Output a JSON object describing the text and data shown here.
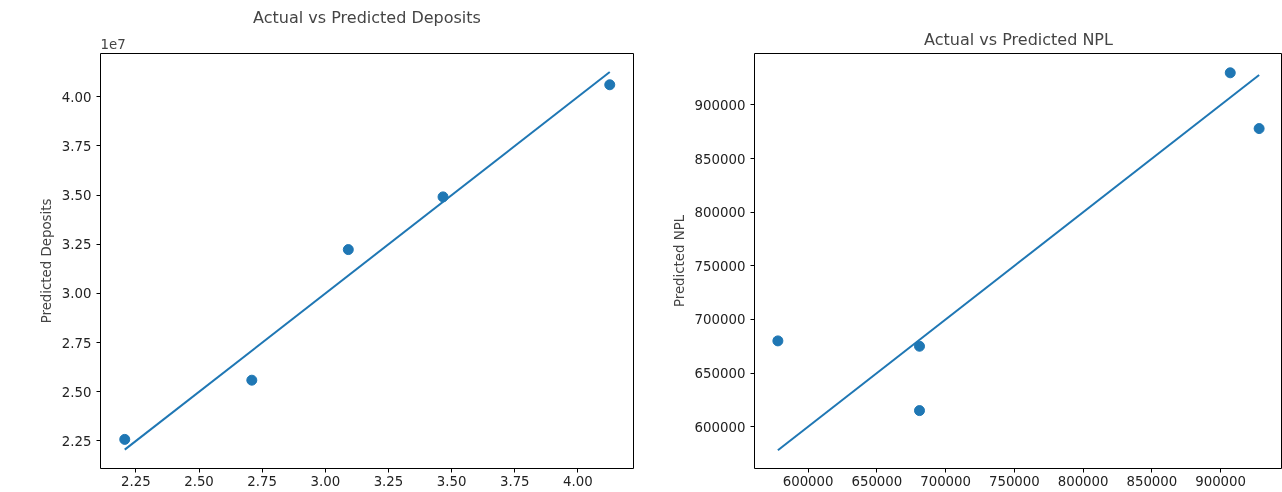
{
  "chart_data": [
    {
      "type": "scatter",
      "title": "Actual vs Predicted Deposits",
      "ylabel": "Predicted Deposits",
      "annotations": [
        "1e7"
      ],
      "x": [
        2.206,
        2.709,
        3.091,
        3.466,
        4.126
      ],
      "grid": false,
      "series": [
        {
          "marker": "circle",
          "color": "#1f77b4",
          "values": [
            2.258,
            2.559,
            3.223,
            3.491,
            4.061
          ]
        },
        {
          "type": "line",
          "color": "#1f77b4",
          "x": [
            2.206,
            4.126
          ],
          "values": [
            2.206,
            4.126
          ]
        }
      ],
      "xlim": [
        2.11,
        4.22
      ],
      "ylim": [
        2.11,
        4.22
      ],
      "xticks": [
        {
          "value": 2.25,
          "label": "2.25"
        },
        {
          "value": 2.5,
          "label": "2.50"
        },
        {
          "value": 2.75,
          "label": "2.75"
        },
        {
          "value": 3,
          "label": "3.00"
        },
        {
          "value": 3.25,
          "label": "3.25"
        },
        {
          "value": 3.5,
          "label": "3.50"
        },
        {
          "value": 3.75,
          "label": "3.75"
        },
        {
          "value": 4,
          "label": "4.00"
        }
      ],
      "yticks": [
        {
          "value": 2.25,
          "label": "2.25"
        },
        {
          "value": 2.5,
          "label": "2.50"
        },
        {
          "value": 2.75,
          "label": "2.75"
        },
        {
          "value": 3,
          "label": "3.00"
        },
        {
          "value": 3.25,
          "label": "3.25"
        },
        {
          "value": 3.5,
          "label": "3.50"
        },
        {
          "value": 3.75,
          "label": "3.75"
        },
        {
          "value": 4,
          "label": "4.00"
        }
      ]
    },
    {
      "type": "scatter",
      "title": "Actual vs Predicted NPL",
      "ylabel": "Predicted NPL",
      "x": [
        578000,
        681000,
        681000,
        907000,
        928000
      ],
      "grid": false,
      "series": [
        {
          "marker": "circle",
          "color": "#1f77b4",
          "values": [
            680000,
            675000,
            615000,
            930000,
            878000
          ]
        },
        {
          "type": "line",
          "color": "#1f77b4",
          "x": [
            578000,
            928000
          ],
          "values": [
            578000,
            928000
          ]
        }
      ],
      "xlim": [
        561000,
        945000
      ],
      "ylim": [
        561000,
        948000
      ],
      "xticks": [
        600000,
        650000,
        700000,
        750000,
        800000,
        850000,
        900000
      ],
      "yticks": [
        600000,
        650000,
        700000,
        750000,
        800000,
        850000,
        900000
      ]
    }
  ]
}
